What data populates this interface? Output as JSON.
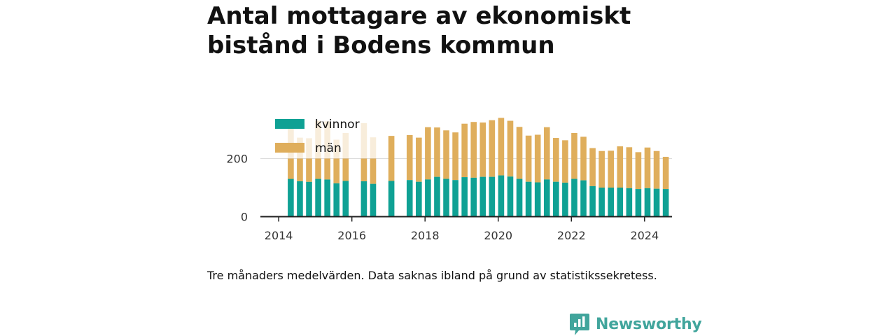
{
  "title": "Antal mottagare av ekonomiskt bistånd i Bodens kommun",
  "note": "Tre månaders medelvärden. Data saknas ibland på grund av statistikssekretess.",
  "brand": {
    "name": "Newsworthy",
    "icon": "newsworthy-logo-icon",
    "color": "#41a59c"
  },
  "chart_data": {
    "type": "bar",
    "stacked": true,
    "x_axis": {
      "min": 2013.5,
      "max": 2024.75,
      "ticks": [
        2014,
        2016,
        2018,
        2020,
        2022,
        2024
      ]
    },
    "y_axis": {
      "min": 0,
      "max": 400,
      "ticks": [
        0,
        200
      ]
    },
    "grid": "horizontal",
    "legend_position": "top-left",
    "series": [
      {
        "name": "kvinnor",
        "color": "#0fa194"
      },
      {
        "name": "män",
        "color": "#dfae5c"
      }
    ],
    "points": [
      {
        "x": 2014.33,
        "kvinnor": 130,
        "man": 200,
        "faded": true
      },
      {
        "x": 2014.58,
        "kvinnor": 122,
        "man": 150,
        "faded": true
      },
      {
        "x": 2014.83,
        "kvinnor": 120,
        "man": 150,
        "faded": true
      },
      {
        "x": 2015.08,
        "kvinnor": 130,
        "man": 200,
        "faded": true
      },
      {
        "x": 2015.33,
        "kvinnor": 128,
        "man": 200,
        "faded": true
      },
      {
        "x": 2015.58,
        "kvinnor": 115,
        "man": 150,
        "faded": true
      },
      {
        "x": 2015.83,
        "kvinnor": 123,
        "man": 165,
        "faded": true
      },
      {
        "x": 2016.33,
        "kvinnor": 122,
        "man": 200,
        "faded": true
      },
      {
        "x": 2016.58,
        "kvinnor": 113,
        "man": 160,
        "faded": true
      },
      {
        "x": 2017.08,
        "kvinnor": 123,
        "man": 155,
        "faded": false
      },
      {
        "x": 2017.58,
        "kvinnor": 126,
        "man": 155,
        "faded": false
      },
      {
        "x": 2017.83,
        "kvinnor": 120,
        "man": 152,
        "faded": false
      },
      {
        "x": 2018.08,
        "kvinnor": 128,
        "man": 180,
        "faded": false
      },
      {
        "x": 2018.33,
        "kvinnor": 137,
        "man": 170,
        "faded": false
      },
      {
        "x": 2018.58,
        "kvinnor": 130,
        "man": 167,
        "faded": false
      },
      {
        "x": 2018.83,
        "kvinnor": 126,
        "man": 164,
        "faded": false
      },
      {
        "x": 2019.08,
        "kvinnor": 136,
        "man": 184,
        "faded": false
      },
      {
        "x": 2019.33,
        "kvinnor": 134,
        "man": 192,
        "faded": false
      },
      {
        "x": 2019.58,
        "kvinnor": 137,
        "man": 187,
        "faded": false
      },
      {
        "x": 2019.83,
        "kvinnor": 137,
        "man": 195,
        "faded": false
      },
      {
        "x": 2020.08,
        "kvinnor": 142,
        "man": 198,
        "faded": false
      },
      {
        "x": 2020.33,
        "kvinnor": 138,
        "man": 192,
        "faded": false
      },
      {
        "x": 2020.58,
        "kvinnor": 130,
        "man": 179,
        "faded": false
      },
      {
        "x": 2020.83,
        "kvinnor": 120,
        "man": 159,
        "faded": false
      },
      {
        "x": 2021.08,
        "kvinnor": 118,
        "man": 164,
        "faded": false
      },
      {
        "x": 2021.33,
        "kvinnor": 128,
        "man": 180,
        "faded": false
      },
      {
        "x": 2021.58,
        "kvinnor": 120,
        "man": 151,
        "faded": false
      },
      {
        "x": 2021.83,
        "kvinnor": 117,
        "man": 146,
        "faded": false
      },
      {
        "x": 2022.08,
        "kvinnor": 130,
        "man": 158,
        "faded": false
      },
      {
        "x": 2022.33,
        "kvinnor": 125,
        "man": 150,
        "faded": false
      },
      {
        "x": 2022.58,
        "kvinnor": 105,
        "man": 131,
        "faded": false
      },
      {
        "x": 2022.83,
        "kvinnor": 100,
        "man": 126,
        "faded": false
      },
      {
        "x": 2023.08,
        "kvinnor": 100,
        "man": 127,
        "faded": false
      },
      {
        "x": 2023.33,
        "kvinnor": 100,
        "man": 142,
        "faded": false
      },
      {
        "x": 2023.58,
        "kvinnor": 98,
        "man": 141,
        "faded": false
      },
      {
        "x": 2023.83,
        "kvinnor": 95,
        "man": 127,
        "faded": false
      },
      {
        "x": 2024.08,
        "kvinnor": 98,
        "man": 140,
        "faded": false
      },
      {
        "x": 2024.33,
        "kvinnor": 96,
        "man": 130,
        "faded": false
      },
      {
        "x": 2024.58,
        "kvinnor": 95,
        "man": 111,
        "faded": false
      }
    ]
  }
}
